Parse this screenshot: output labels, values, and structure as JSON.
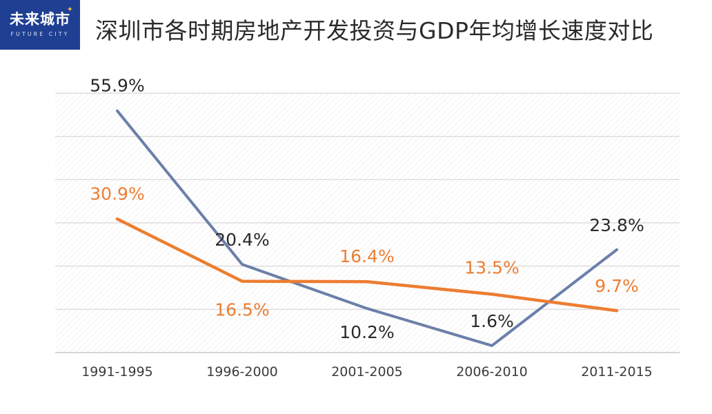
{
  "logo": {
    "main": "未来城市",
    "sub": "FUTURE CITY"
  },
  "chart_data": {
    "type": "line",
    "title": "深圳市各时期房地产开发投资与GDP年均增长速度对比",
    "categories": [
      "1991-1995",
      "1996-2000",
      "2001-2005",
      "2006-2010",
      "2011-2015"
    ],
    "series": [
      {
        "name": "房地产开发投资",
        "color": "#6b7fa8",
        "values": [
          55.9,
          20.4,
          10.2,
          1.6,
          23.8
        ],
        "labels": [
          "55.9%",
          "20.4%",
          "10.2%",
          "1.6%",
          "23.8%"
        ],
        "label_color": "#2a2a2a"
      },
      {
        "name": "GDP",
        "color": "#ed7d31",
        "values": [
          30.9,
          16.5,
          16.4,
          13.5,
          9.7
        ],
        "labels": [
          "30.9%",
          "16.5%",
          "16.4%",
          "13.5%",
          "9.7%"
        ],
        "label_color": "#ed7d31"
      }
    ],
    "ylim": [
      0,
      60
    ],
    "grid": true,
    "legend": "none"
  }
}
